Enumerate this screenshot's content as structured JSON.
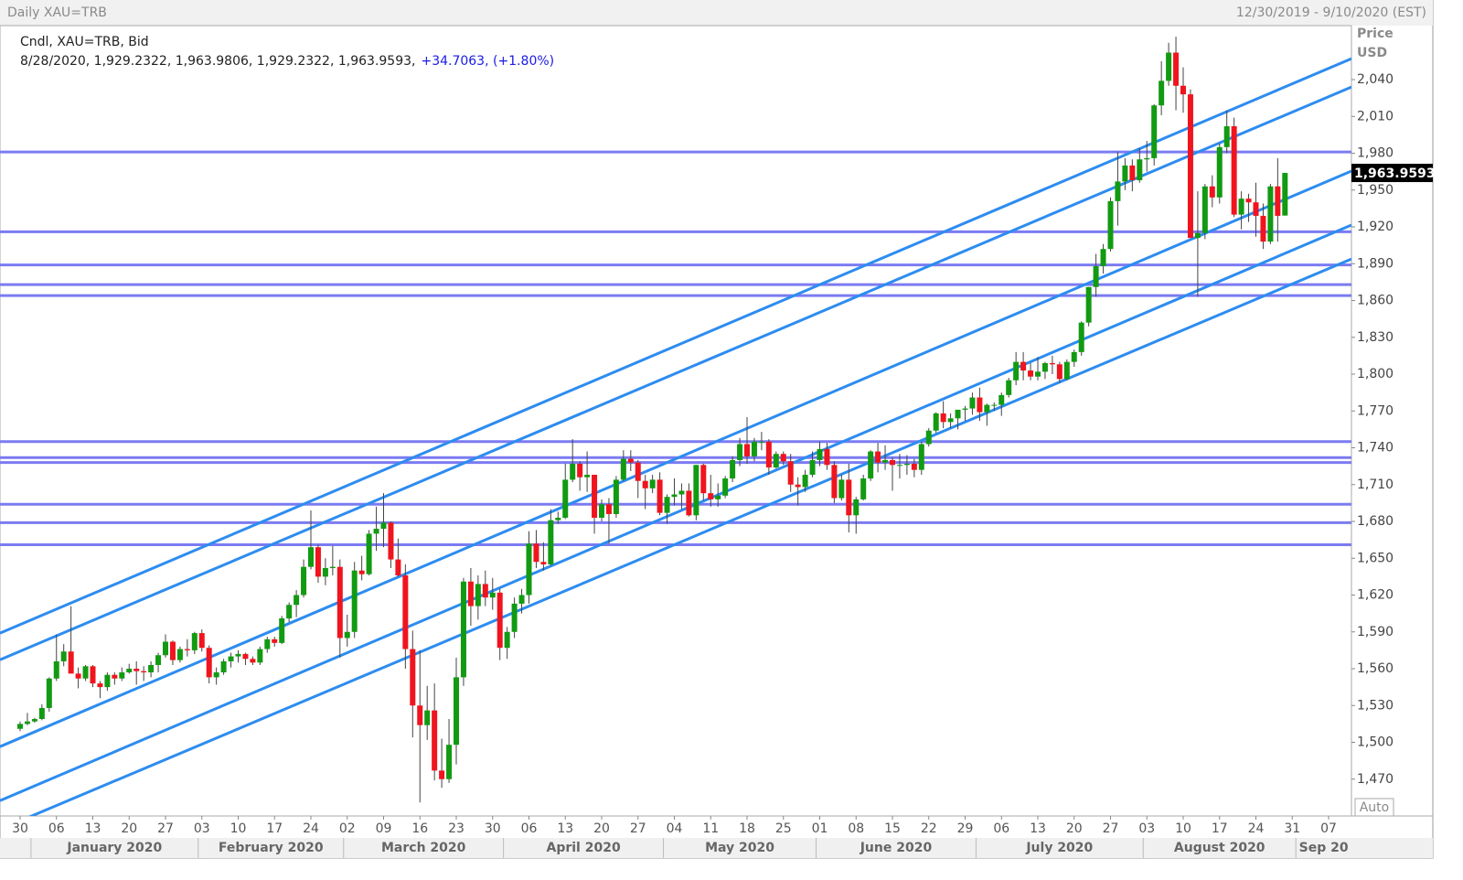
{
  "chart_data": {
    "type": "candlestick",
    "header_title": "Daily XAU=TRB",
    "header_range": "12/30/2019 - 9/10/2020 (EST)",
    "legend_line": "Cndl, XAU=TRB, Bid",
    "info_line": "8/28/2020, 1,929.2322, 1,963.9806, 1,929.2322, 1,963.9593,",
    "info_change": "+34.7063, (+1.80%)",
    "y_axis_title": [
      "Price",
      "USD"
    ],
    "auto_button": "Auto",
    "up_color": "#129a12",
    "down_color": "#f0141e",
    "level_color": "#7b7bf2",
    "trend_color": "#2d8cf0",
    "ylim": [
      1440,
      2084
    ],
    "yticks": [
      {
        "value": 1470,
        "label": "1,470"
      },
      {
        "value": 1500,
        "label": "1,500"
      },
      {
        "value": 1530,
        "label": "1,530"
      },
      {
        "value": 1560,
        "label": "1,560"
      },
      {
        "value": 1590,
        "label": "1,590"
      },
      {
        "value": 1620,
        "label": "1,620"
      },
      {
        "value": 1650,
        "label": "1,650"
      },
      {
        "value": 1680,
        "label": "1,680"
      },
      {
        "value": 1710,
        "label": "1,710"
      },
      {
        "value": 1740,
        "label": "1,740"
      },
      {
        "value": 1770,
        "label": "1,770"
      },
      {
        "value": 1800,
        "label": "1,800"
      },
      {
        "value": 1830,
        "label": "1,830"
      },
      {
        "value": 1860,
        "label": "1,860"
      },
      {
        "value": 1890,
        "label": "1,890"
      },
      {
        "value": 1920,
        "label": "1,920"
      },
      {
        "value": 1950,
        "label": "1,950"
      },
      {
        "value": 1980,
        "label": "1,980"
      },
      {
        "value": 2010,
        "label": "2,010"
      },
      {
        "value": 2040,
        "label": "2,040"
      }
    ],
    "last_price": {
      "value": 1963.9593,
      "label": "1,963.9593"
    },
    "xticks": [
      {
        "value": "12/30/2019",
        "label": "30"
      },
      {
        "value": "1/6/2020",
        "label": "06"
      },
      {
        "value": "1/13/2020",
        "label": "13"
      },
      {
        "value": "1/20/2020",
        "label": "20"
      },
      {
        "value": "1/27/2020",
        "label": "27"
      },
      {
        "value": "2/3/2020",
        "label": "03"
      },
      {
        "value": "2/10/2020",
        "label": "10"
      },
      {
        "value": "2/17/2020",
        "label": "17"
      },
      {
        "value": "2/24/2020",
        "label": "24"
      },
      {
        "value": "3/2/2020",
        "label": "02"
      },
      {
        "value": "3/9/2020",
        "label": "09"
      },
      {
        "value": "3/16/2020",
        "label": "16"
      },
      {
        "value": "3/23/2020",
        "label": "23"
      },
      {
        "value": "3/30/2020",
        "label": "30"
      },
      {
        "value": "4/6/2020",
        "label": "06"
      },
      {
        "value": "4/13/2020",
        "label": "13"
      },
      {
        "value": "4/20/2020",
        "label": "20"
      },
      {
        "value": "4/27/2020",
        "label": "27"
      },
      {
        "value": "5/4/2020",
        "label": "04"
      },
      {
        "value": "5/11/2020",
        "label": "11"
      },
      {
        "value": "5/18/2020",
        "label": "18"
      },
      {
        "value": "5/25/2020",
        "label": "25"
      },
      {
        "value": "6/1/2020",
        "label": "01"
      },
      {
        "value": "6/8/2020",
        "label": "08"
      },
      {
        "value": "6/15/2020",
        "label": "15"
      },
      {
        "value": "6/22/2020",
        "label": "22"
      },
      {
        "value": "6/29/2020",
        "label": "29"
      },
      {
        "value": "7/6/2020",
        "label": "06"
      },
      {
        "value": "7/13/2020",
        "label": "13"
      },
      {
        "value": "7/20/2020",
        "label": "20"
      },
      {
        "value": "7/27/2020",
        "label": "27"
      },
      {
        "value": "8/3/2020",
        "label": "03"
      },
      {
        "value": "8/10/2020",
        "label": "10"
      },
      {
        "value": "8/17/2020",
        "label": "17"
      },
      {
        "value": "8/24/2020",
        "label": "24"
      },
      {
        "value": "8/31/2020",
        "label": "31"
      },
      {
        "value": "9/7/2020",
        "label": "07"
      }
    ],
    "month_labels": [
      "January 2020",
      "February 2020",
      "March 2020",
      "April 2020",
      "May 2020",
      "June 2020",
      "July 2020",
      "August 2020",
      "Sep 20"
    ],
    "levels": [
      1981,
      1916,
      1889,
      1873,
      1864,
      1745,
      1732,
      1728,
      1694,
      1679,
      1661
    ],
    "trend_lines": [
      {
        "x": [
          "1/6/2020",
          "8/3/2020"
        ],
        "y": [
          1608.5,
          1986.2
        ]
      },
      {
        "x": [
          "1/6/2020",
          "8/3/2020"
        ],
        "y": [
          1586.8,
          1963.3
        ]
      },
      {
        "x": [
          "1/6/2020",
          "8/3/2020"
        ],
        "y": [
          1516.1,
          1894.5
        ]
      },
      {
        "x": [
          "1/6/2020",
          "8/3/2020"
        ],
        "y": [
          1472.1,
          1850.5
        ]
      },
      {
        "x": [
          "1/6/2020",
          "8/3/2020"
        ],
        "y": [
          1448.5,
          1823.5
        ]
      }
    ],
    "x": [
      "12/30/2019",
      "12/31/2019",
      "1/1/2020",
      "1/2/2020",
      "1/3/2020",
      "1/6/2020",
      "1/7/2020",
      "1/8/2020",
      "1/9/2020",
      "1/10/2020",
      "1/13/2020",
      "1/14/2020",
      "1/15/2020",
      "1/16/2020",
      "1/17/2020",
      "1/20/2020",
      "1/21/2020",
      "1/22/2020",
      "1/23/2020",
      "1/24/2020",
      "1/27/2020",
      "1/28/2020",
      "1/29/2020",
      "1/30/2020",
      "1/31/2020",
      "2/3/2020",
      "2/4/2020",
      "2/5/2020",
      "2/6/2020",
      "2/7/2020",
      "2/10/2020",
      "2/11/2020",
      "2/12/2020",
      "2/13/2020",
      "2/14/2020",
      "2/17/2020",
      "2/18/2020",
      "2/19/2020",
      "2/20/2020",
      "2/21/2020",
      "2/24/2020",
      "2/25/2020",
      "2/26/2020",
      "2/27/2020",
      "2/28/2020",
      "3/2/2020",
      "3/3/2020",
      "3/4/2020",
      "3/5/2020",
      "3/6/2020",
      "3/9/2020",
      "3/10/2020",
      "3/11/2020",
      "3/12/2020",
      "3/13/2020",
      "3/16/2020",
      "3/17/2020",
      "3/18/2020",
      "3/19/2020",
      "3/20/2020",
      "3/23/2020",
      "3/24/2020",
      "3/25/2020",
      "3/26/2020",
      "3/27/2020",
      "3/30/2020",
      "3/31/2020",
      "4/1/2020",
      "4/2/2020",
      "4/3/2020",
      "4/6/2020",
      "4/7/2020",
      "4/8/2020",
      "4/9/2020",
      "4/10/2020",
      "4/13/2020",
      "4/14/2020",
      "4/15/2020",
      "4/16/2020",
      "4/17/2020",
      "4/20/2020",
      "4/21/2020",
      "4/22/2020",
      "4/23/2020",
      "4/24/2020",
      "4/27/2020",
      "4/28/2020",
      "4/29/2020",
      "4/30/2020",
      "5/1/2020",
      "5/4/2020",
      "5/5/2020",
      "5/6/2020",
      "5/7/2020",
      "5/8/2020",
      "5/11/2020",
      "5/12/2020",
      "5/13/2020",
      "5/14/2020",
      "5/15/2020",
      "5/18/2020",
      "5/19/2020",
      "5/20/2020",
      "5/21/2020",
      "5/22/2020",
      "5/25/2020",
      "5/26/2020",
      "5/27/2020",
      "5/28/2020",
      "5/29/2020",
      "6/1/2020",
      "6/2/2020",
      "6/3/2020",
      "6/4/2020",
      "6/5/2020",
      "6/8/2020",
      "6/9/2020",
      "6/10/2020",
      "6/11/2020",
      "6/12/2020",
      "6/15/2020",
      "6/16/2020",
      "6/17/2020",
      "6/18/2020",
      "6/19/2020",
      "6/22/2020",
      "6/23/2020",
      "6/24/2020",
      "6/25/2020",
      "6/26/2020",
      "6/29/2020",
      "6/30/2020",
      "7/1/2020",
      "7/2/2020",
      "7/3/2020",
      "7/6/2020",
      "7/7/2020",
      "7/8/2020",
      "7/9/2020",
      "7/10/2020",
      "7/13/2020",
      "7/14/2020",
      "7/15/2020",
      "7/16/2020",
      "7/17/2020",
      "7/20/2020",
      "7/21/2020",
      "7/22/2020",
      "7/23/2020",
      "7/24/2020",
      "7/27/2020",
      "7/28/2020",
      "7/29/2020",
      "7/30/2020",
      "7/31/2020",
      "8/3/2020",
      "8/4/2020",
      "8/5/2020",
      "8/6/2020",
      "8/7/2020",
      "8/10/2020",
      "8/11/2020",
      "8/12/2020",
      "8/13/2020",
      "8/14/2020",
      "8/17/2020",
      "8/18/2020",
      "8/19/2020",
      "8/20/2020",
      "8/21/2020",
      "8/24/2020",
      "8/25/2020",
      "8/26/2020",
      "8/27/2020",
      "8/28/2020"
    ],
    "open": [
      1511,
      1515,
      1517,
      1519,
      1528,
      1552,
      1566,
      1574,
      1556,
      1552,
      1562,
      1548,
      1545,
      1555,
      1552,
      1557,
      1560,
      1558,
      1557,
      1563,
      1571,
      1582,
      1567,
      1576,
      1575,
      1589,
      1577,
      1553,
      1557,
      1566,
      1570,
      1572,
      1568,
      1565,
      1576,
      1584,
      1581,
      1601,
      1612,
      1620,
      1643,
      1659,
      1635,
      1642,
      1643,
      1585,
      1590,
      1640,
      1637,
      1670,
      1674,
      1679,
      1649,
      1636,
      1576,
      1530,
      1514,
      1526,
      1477,
      1470,
      1498,
      1553,
      1631,
      1611,
      1629,
      1618,
      1622,
      1577,
      1590,
      1613,
      1620,
      1662,
      1647,
      1645,
      1681,
      1683,
      1714,
      1727,
      1716,
      1718,
      1683,
      1694,
      1686,
      1714,
      1731,
      1728,
      1713,
      1707,
      1714,
      1687,
      1700,
      1702,
      1705,
      1685,
      1726,
      1703,
      1698,
      1701,
      1715,
      1730,
      1743,
      1733,
      1745,
      1745,
      1724,
      1735,
      1729,
      1710,
      1708,
      1718,
      1730,
      1739,
      1726,
      1699,
      1714,
      1685,
      1698,
      1715,
      1737,
      1728,
      1730,
      1726,
      1726,
      1727,
      1722,
      1743,
      1754,
      1768,
      1761,
      1764,
      1771,
      1772,
      1781,
      1769,
      1775,
      1775,
      1783,
      1795,
      1810,
      1803,
      1798,
      1802,
      1809,
      1808,
      1796,
      1810,
      1818,
      1842,
      1871,
      1888,
      1902,
      1941,
      1957,
      1970,
      1958,
      1975,
      1976,
      2019,
      2039,
      2062,
      2035,
      2028,
      1911,
      1915,
      1953,
      1944,
      1985,
      2002,
      1930,
      1943,
      1940,
      1929,
      1908,
      1953,
      1929.2322
    ],
    "high": [
      1517,
      1524,
      1520,
      1531,
      1553,
      1588,
      1580,
      1611,
      1561,
      1563,
      1563,
      1550,
      1557,
      1557,
      1561,
      1564,
      1566,
      1562,
      1566,
      1573,
      1588,
      1583,
      1578,
      1584,
      1590,
      1592,
      1579,
      1561,
      1568,
      1573,
      1575,
      1573,
      1570,
      1578,
      1586,
      1586,
      1603,
      1614,
      1624,
      1649,
      1689,
      1661,
      1650,
      1660,
      1649,
      1604,
      1647,
      1652,
      1673,
      1692,
      1703,
      1680,
      1666,
      1645,
      1591,
      1575,
      1546,
      1548,
      1503,
      1519,
      1569,
      1634,
      1642,
      1636,
      1640,
      1634,
      1625,
      1594,
      1618,
      1625,
      1672,
      1673,
      1663,
      1690,
      1688,
      1727,
      1747,
      1729,
      1737,
      1718,
      1698,
      1699,
      1717,
      1738,
      1738,
      1730,
      1718,
      1718,
      1720,
      1702,
      1715,
      1711,
      1711,
      1726,
      1727,
      1718,
      1711,
      1717,
      1733,
      1748,
      1765,
      1748,
      1753,
      1747,
      1737,
      1737,
      1735,
      1716,
      1722,
      1737,
      1745,
      1744,
      1729,
      1718,
      1727,
      1700,
      1718,
      1738,
      1744,
      1742,
      1732,
      1735,
      1734,
      1731,
      1745,
      1756,
      1769,
      1778,
      1768,
      1771,
      1774,
      1785,
      1789,
      1776,
      1777,
      1785,
      1797,
      1818,
      1818,
      1809,
      1814,
      1810,
      1815,
      1810,
      1812,
      1820,
      1843,
      1871,
      1898,
      1906,
      1944,
      1981,
      1976,
      1975,
      1984,
      1990,
      2020,
      2055,
      2070,
      2075,
      2050,
      2032,
      1949,
      1955,
      1962,
      1988,
      2015,
      2009,
      1949,
      1947,
      1956,
      1939,
      1955,
      1976,
      1963.9806
    ],
    "low": [
      1509,
      1514,
      1516,
      1518,
      1525,
      1550,
      1562,
      1557,
      1544,
      1550,
      1545,
      1536,
      1542,
      1547,
      1550,
      1556,
      1547,
      1550,
      1553,
      1557,
      1569,
      1563,
      1565,
      1570,
      1572,
      1574,
      1548,
      1547,
      1555,
      1561,
      1565,
      1563,
      1563,
      1563,
      1573,
      1578,
      1580,
      1598,
      1602,
      1618,
      1641,
      1630,
      1628,
      1636,
      1569,
      1578,
      1585,
      1632,
      1636,
      1656,
      1659,
      1642,
      1635,
      1560,
      1504,
      1451,
      1502,
      1469,
      1463,
      1467,
      1482,
      1546,
      1595,
      1600,
      1611,
      1608,
      1567,
      1568,
      1585,
      1605,
      1613,
      1642,
      1640,
      1644,
      1678,
      1682,
      1712,
      1705,
      1704,
      1670,
      1680,
      1662,
      1683,
      1713,
      1721,
      1699,
      1690,
      1703,
      1685,
      1678,
      1693,
      1690,
      1684,
      1681,
      1697,
      1692,
      1692,
      1699,
      1712,
      1725,
      1727,
      1729,
      1738,
      1718,
      1723,
      1726,
      1704,
      1693,
      1704,
      1716,
      1725,
      1722,
      1695,
      1697,
      1671,
      1670,
      1697,
      1713,
      1720,
      1722,
      1705,
      1715,
      1718,
      1716,
      1718,
      1741,
      1752,
      1756,
      1756,
      1755,
      1762,
      1767,
      1762,
      1758,
      1770,
      1766,
      1781,
      1791,
      1795,
      1795,
      1795,
      1796,
      1800,
      1793,
      1795,
      1806,
      1815,
      1839,
      1863,
      1882,
      1900,
      1921,
      1950,
      1949,
      1956,
      1965,
      1970,
      2011,
      2035,
      2015,
      2013,
      1911,
      1863,
      1910,
      1936,
      1939,
      1980,
      1928,
      1918,
      1924,
      1912,
      1902,
      1906,
      1908,
      1929.2322
    ],
    "close": [
      1515,
      1517,
      1519,
      1528,
      1552,
      1566,
      1574,
      1556,
      1552,
      1562,
      1548,
      1545,
      1555,
      1552,
      1557,
      1560,
      1558,
      1557,
      1563,
      1571,
      1582,
      1567,
      1576,
      1575,
      1589,
      1577,
      1553,
      1557,
      1566,
      1570,
      1572,
      1568,
      1565,
      1576,
      1584,
      1581,
      1601,
      1612,
      1620,
      1643,
      1659,
      1635,
      1642,
      1643,
      1585,
      1590,
      1640,
      1637,
      1670,
      1674,
      1679,
      1649,
      1636,
      1576,
      1530,
      1514,
      1526,
      1477,
      1470,
      1498,
      1553,
      1631,
      1611,
      1629,
      1618,
      1622,
      1577,
      1590,
      1613,
      1620,
      1662,
      1647,
      1645,
      1681,
      1683,
      1714,
      1727,
      1716,
      1718,
      1683,
      1694,
      1686,
      1714,
      1731,
      1728,
      1713,
      1707,
      1714,
      1687,
      1700,
      1702,
      1705,
      1685,
      1726,
      1703,
      1698,
      1701,
      1715,
      1730,
      1743,
      1733,
      1745,
      1745,
      1724,
      1735,
      1729,
      1710,
      1708,
      1718,
      1730,
      1739,
      1726,
      1699,
      1714,
      1685,
      1698,
      1715,
      1737,
      1728,
      1730,
      1726,
      1726,
      1727,
      1722,
      1743,
      1754,
      1768,
      1761,
      1764,
      1771,
      1772,
      1781,
      1769,
      1775,
      1775,
      1783,
      1795,
      1810,
      1803,
      1798,
      1802,
      1809,
      1808,
      1796,
      1810,
      1818,
      1842,
      1871,
      1888,
      1902,
      1941,
      1957,
      1970,
      1958,
      1975,
      1976,
      2019,
      2039,
      2062,
      2035,
      2028,
      1911,
      1915,
      1953,
      1944,
      1985,
      2002,
      1930,
      1943,
      1940,
      1929,
      1908,
      1953,
      1929,
      1963.9593
    ]
  }
}
